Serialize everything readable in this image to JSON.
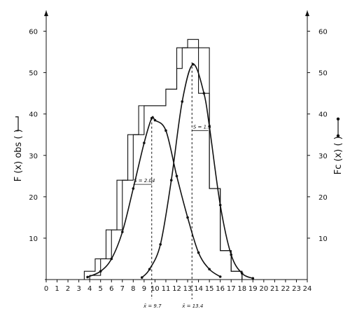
{
  "chart_data": {
    "type": "line",
    "ylabel_left": "F (x) obs (",
    "ylabel_right": "Fc (x) (",
    "xlim": [
      0,
      24
    ],
    "ylim": [
      0,
      60
    ],
    "x_ticks": [
      0,
      1,
      2,
      3,
      4,
      5,
      6,
      7,
      8,
      9,
      10,
      11,
      12,
      13,
      14,
      15,
      16,
      17,
      18,
      19,
      20,
      21,
      22,
      23,
      24
    ],
    "y_ticks": [
      10,
      20,
      30,
      40,
      50,
      60
    ],
    "observed_histograms": [
      {
        "steps": [
          [
            3.5,
            4.5,
            2
          ],
          [
            4.5,
            5.5,
            5
          ],
          [
            5.5,
            6.5,
            12
          ],
          [
            6.5,
            7.5,
            24
          ],
          [
            7.5,
            8.5,
            35
          ],
          [
            8.5,
            11,
            42
          ],
          [
            11,
            12,
            46
          ],
          [
            12,
            12.5,
            51
          ],
          [
            12.5,
            15,
            56
          ],
          [
            15,
            16,
            22
          ],
          [
            16,
            17,
            7
          ],
          [
            17,
            18,
            2
          ]
        ]
      },
      {
        "steps": [
          [
            4,
            5,
            1
          ],
          [
            5,
            6,
            5
          ],
          [
            6,
            7,
            12
          ],
          [
            7,
            8,
            24
          ],
          [
            8,
            9,
            35
          ],
          [
            9,
            11,
            42
          ],
          [
            11,
            12,
            46
          ],
          [
            12,
            13,
            56
          ],
          [
            13,
            14,
            58
          ],
          [
            14,
            15,
            45
          ],
          [
            15,
            16,
            22
          ],
          [
            16,
            17,
            7
          ],
          [
            17,
            18,
            2
          ],
          [
            18,
            19,
            0
          ]
        ]
      }
    ],
    "series": [
      {
        "mean": 9.7,
        "sd": 2.04,
        "peak": 39,
        "points": [
          [
            3.8,
            0.6
          ],
          [
            5,
            2
          ],
          [
            6,
            5
          ],
          [
            7,
            11.5
          ],
          [
            8,
            22
          ],
          [
            9,
            33
          ],
          [
            9.7,
            39
          ],
          [
            10,
            38.5
          ],
          [
            11,
            36
          ],
          [
            12,
            25
          ],
          [
            13,
            15
          ],
          [
            14,
            6.5
          ],
          [
            15,
            2.5
          ],
          [
            16,
            0.7
          ]
        ]
      },
      {
        "mean": 13.4,
        "sd": 1.5,
        "peak": 52.5,
        "points": [
          [
            8.8,
            0.5
          ],
          [
            9.5,
            2.5
          ],
          [
            10.5,
            8.5
          ],
          [
            11.5,
            24
          ],
          [
            12.5,
            43
          ],
          [
            13.5,
            52
          ],
          [
            14.5,
            45
          ],
          [
            15,
            37
          ],
          [
            16,
            18
          ],
          [
            17,
            6
          ],
          [
            18,
            1.5
          ],
          [
            19,
            0.3
          ]
        ]
      }
    ],
    "annotations": {
      "sd1": "S = 2.04",
      "sd2": "S = 1.5",
      "mean1": "x̄ = 9.7",
      "mean2": "x̄ = 13.4"
    },
    "grid": false
  }
}
